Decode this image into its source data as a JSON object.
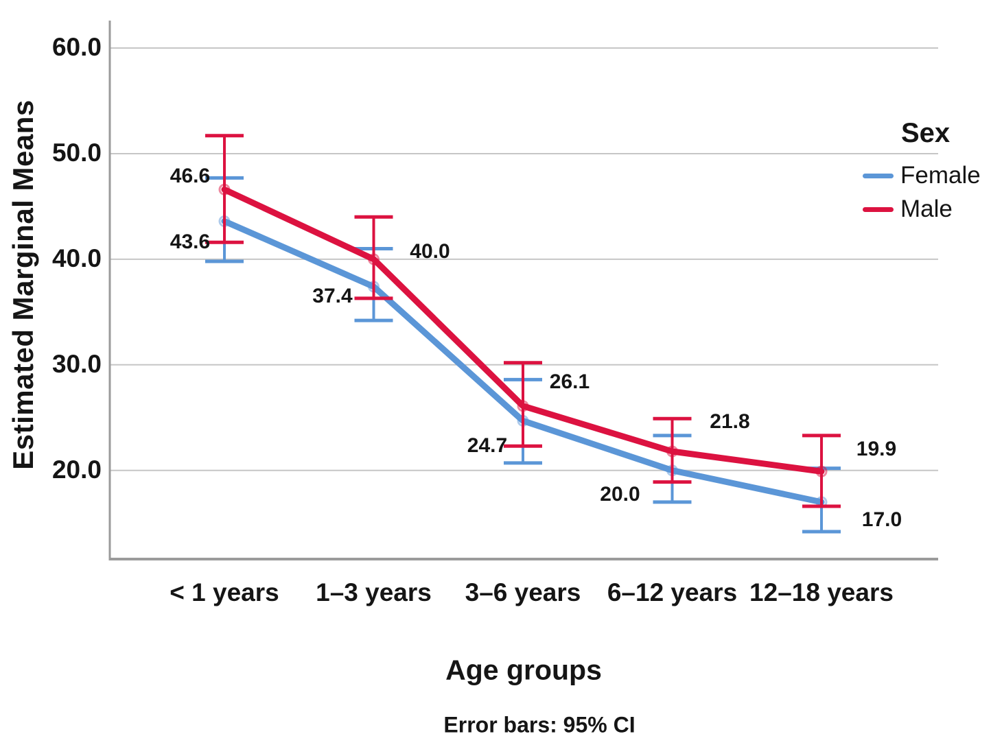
{
  "chart_data": {
    "type": "line",
    "title": "",
    "xlabel": "Age groups",
    "ylabel": "Estimated Marginal Means",
    "footnote": "Error bars: 95% CI",
    "categories": [
      "< 1 years",
      "1–3 years",
      "3–6 years",
      "6–12 years",
      "12–18 years"
    ],
    "y_ticks": [
      60,
      50,
      40,
      30,
      20
    ],
    "y_tick_labels": [
      "60.0",
      "50.0",
      "40.0",
      "30.0",
      "20.0"
    ],
    "ylim": [
      11.6,
      62.6
    ],
    "grid": "horizontal",
    "legend": {
      "title": "Sex",
      "position": "right",
      "entries": [
        "Female",
        "Male"
      ]
    },
    "series": [
      {
        "name": "Female",
        "color": "#5B96D7",
        "values": [
          43.6,
          37.4,
          24.7,
          20.0,
          17.0
        ],
        "labels": [
          "43.6",
          "37.4",
          "24.7",
          "20.0",
          "17.0"
        ],
        "ci_low": [
          39.8,
          34.2,
          20.7,
          17.0,
          14.2
        ],
        "ci_high": [
          47.7,
          41.0,
          28.6,
          23.3,
          20.2
        ]
      },
      {
        "name": "Male",
        "color": "#DC1240",
        "values": [
          46.6,
          40.0,
          26.1,
          21.8,
          19.9
        ],
        "labels": [
          "46.6",
          "40.0",
          "26.1",
          "21.8",
          "19.9"
        ],
        "ci_low": [
          41.6,
          36.3,
          22.3,
          18.9,
          16.6
        ],
        "ci_high": [
          51.7,
          44.0,
          30.2,
          24.9,
          23.3
        ]
      }
    ],
    "colors": {
      "female_line": "#5B96D7",
      "male_line": "#DC1240",
      "gridline": "#C6C6C6",
      "axis": "#9B9B9B",
      "text": "#151515",
      "background": "#FFFFFF"
    }
  }
}
